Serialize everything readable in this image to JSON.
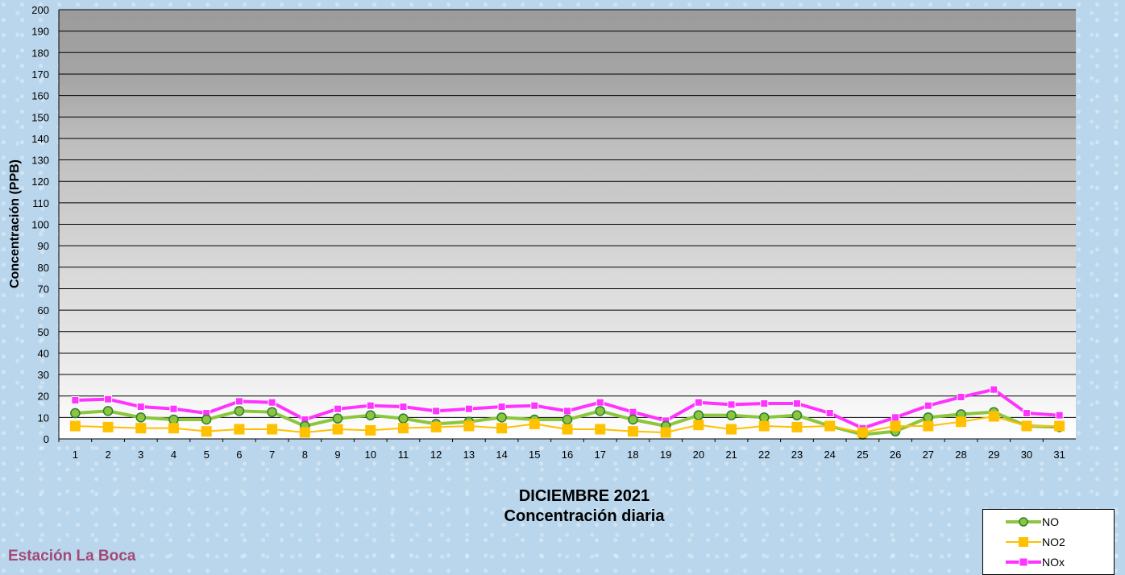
{
  "chart_data": {
    "type": "line",
    "title": "DICIEMBRE 2021",
    "subtitle": "Concentración diaria",
    "ylabel": "Concentración  (PPB)",
    "xlabel": "",
    "ylim": [
      0,
      200
    ],
    "yticks": [
      0,
      10,
      20,
      30,
      40,
      50,
      60,
      70,
      80,
      90,
      100,
      110,
      120,
      130,
      140,
      150,
      160,
      170,
      180,
      190,
      200
    ],
    "grid": true,
    "legend": "bottom-right",
    "x": [
      1,
      2,
      3,
      4,
      5,
      6,
      7,
      8,
      9,
      10,
      11,
      12,
      13,
      14,
      15,
      16,
      17,
      18,
      19,
      20,
      21,
      22,
      23,
      24,
      25,
      26,
      27,
      28,
      29,
      30,
      31
    ],
    "series": [
      {
        "name": "NO",
        "color": "#8cc63f",
        "marker": "circle",
        "values": [
          12,
          13,
          10,
          9,
          9,
          13,
          12.5,
          6,
          9.5,
          11,
          9.5,
          7,
          8,
          10,
          9,
          9,
          13,
          9,
          6,
          11,
          11,
          10,
          11,
          6,
          2,
          3.5,
          10,
          11.5,
          12.5,
          6,
          5.5
        ]
      },
      {
        "name": "NO2",
        "color": "#ffc000",
        "marker": "square",
        "values": [
          6,
          5.5,
          5,
          5,
          3.5,
          4.5,
          4.5,
          3,
          4.5,
          4,
          5,
          5.5,
          6,
          5,
          7,
          4.5,
          4.5,
          3.5,
          3,
          6.5,
          4.5,
          6,
          5.5,
          6,
          3,
          6,
          6,
          8,
          10.5,
          6,
          6
        ]
      },
      {
        "name": "NOx",
        "color": "#ff33ff",
        "marker": "square",
        "values": [
          18,
          18.5,
          15,
          14,
          12,
          17.5,
          17,
          9,
          14,
          15.5,
          15,
          13,
          14,
          15,
          15.5,
          13,
          17,
          12.5,
          8.5,
          17,
          16,
          16.5,
          16.5,
          12,
          5,
          10,
          15.5,
          19.5,
          23,
          12,
          11
        ]
      }
    ]
  },
  "station": "Estación La Boca"
}
